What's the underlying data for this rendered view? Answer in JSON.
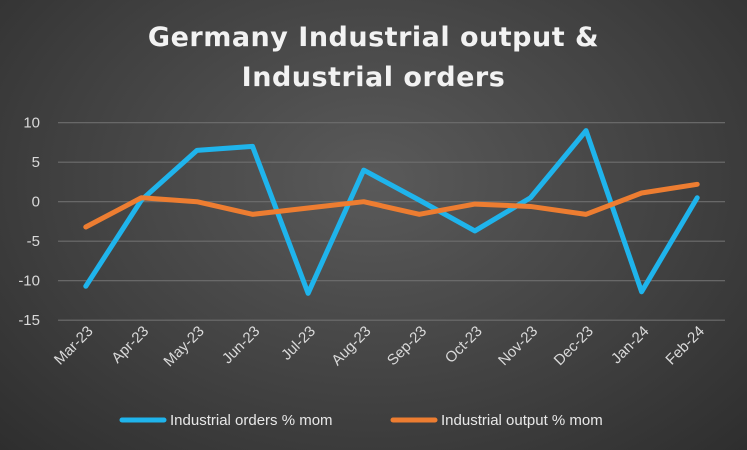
{
  "chart_data": {
    "type": "line",
    "title_line1": "Germany Industrial output &",
    "title_line2": "Industrial orders",
    "categories": [
      "Mar-23",
      "Apr-23",
      "May-23",
      "Jun-23",
      "Jul-23",
      "Aug-23",
      "Sep-23",
      "Oct-23",
      "Nov-23",
      "Dec-23",
      "Jan-24",
      "Feb-24"
    ],
    "series": [
      {
        "name": "Industrial orders % mom",
        "color": "#1fb4ec",
        "values": [
          -10.7,
          0.2,
          6.5,
          7.0,
          -11.6,
          4.0,
          0.2,
          -3.7,
          0.5,
          9.0,
          -11.4,
          0.5
        ]
      },
      {
        "name": "Industrial output % mom",
        "color": "#ed7d31",
        "values": [
          -3.2,
          0.5,
          0.0,
          -1.6,
          -0.8,
          0.0,
          -1.6,
          -0.3,
          -0.6,
          -1.6,
          1.1,
          2.2
        ]
      }
    ],
    "yticks": [
      10,
      5,
      0,
      -5,
      -10,
      -15
    ],
    "ylim": [
      -15,
      10
    ],
    "grid": true,
    "legend": "bottom"
  }
}
